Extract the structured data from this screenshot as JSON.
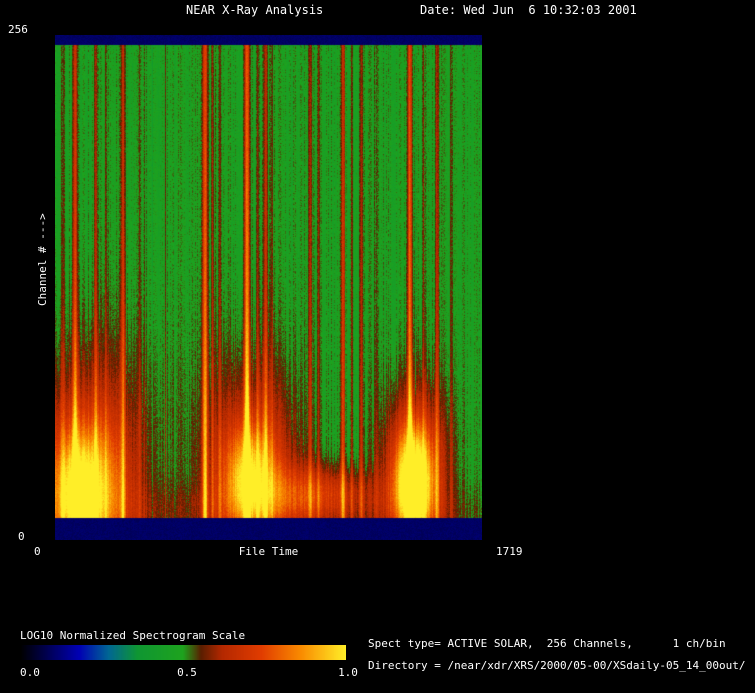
{
  "header": {
    "title": "NEAR X-Ray Analysis",
    "date_label": "Date: Wed Jun  6 10:32:03 2001"
  },
  "axes": {
    "y_top_tick": "256",
    "y_bottom_tick": "0",
    "y_title": "Channel # --->",
    "x_left_tick": "0",
    "x_title": "File Time",
    "x_right_tick": "1719"
  },
  "scale": {
    "label": "LOG10 Normalized Spectrogram Scale",
    "ticks": [
      "0.0",
      "0.5",
      "1.0"
    ]
  },
  "info": {
    "line1": "Spect type= ACTIVE SOLAR,  256 Channels,      1 ch/bin",
    "line2": "Directory = /near/xdr/XRS/2000/05-00/XSdaily-05_14_00out/"
  },
  "colors": {
    "background": "#000000",
    "text": "#ffffff"
  },
  "chart_data": {
    "type": "heatmap",
    "title": "NEAR X-Ray Analysis",
    "xlabel": "File Time",
    "ylabel": "Channel # --->",
    "x_range": [
      0,
      1719
    ],
    "y_range": [
      0,
      256
    ],
    "value_label": "LOG10 Normalized Spectrogram Scale",
    "value_range": [
      0.0,
      1.0
    ],
    "background_level": 0.48,
    "noise": {
      "column": 0.035,
      "pixel": 0.03
    },
    "colormap": [
      {
        "at": 0.0,
        "color": "#000000"
      },
      {
        "at": 0.09,
        "color": "#00005a"
      },
      {
        "at": 0.18,
        "color": "#0000b4"
      },
      {
        "at": 0.27,
        "color": "#006694"
      },
      {
        "at": 0.36,
        "color": "#0f9632"
      },
      {
        "at": 0.5,
        "color": "#1ea31e"
      },
      {
        "at": 0.555,
        "color": "#5a1e00"
      },
      {
        "at": 0.62,
        "color": "#b42800"
      },
      {
        "at": 0.74,
        "color": "#e13c00"
      },
      {
        "at": 0.86,
        "color": "#f98a00"
      },
      {
        "at": 1.0,
        "color": "#ffee28"
      }
    ],
    "edge_bands": [
      {
        "channels": [
          251,
          256
        ],
        "level": 0.1
      },
      {
        "channels": [
          0,
          11
        ],
        "level": 0.1
      }
    ],
    "streaks": [
      {
        "t": 32,
        "sigma": 4,
        "amp": 0.13
      },
      {
        "t": 81,
        "sigma": 7,
        "amp": 0.3
      },
      {
        "t": 165,
        "sigma": 5,
        "amp": 0.2
      },
      {
        "t": 205,
        "sigma": 4,
        "amp": 0.11
      },
      {
        "t": 274,
        "sigma": 6,
        "amp": 0.27
      },
      {
        "t": 342,
        "sigma": 4,
        "amp": 0.1
      },
      {
        "t": 604,
        "sigma": 7,
        "amp": 0.42
      },
      {
        "t": 636,
        "sigma": 4,
        "amp": 0.17
      },
      {
        "t": 664,
        "sigma": 5,
        "amp": 0.15
      },
      {
        "t": 773,
        "sigma": 7,
        "amp": 0.48
      },
      {
        "t": 817,
        "sigma": 4,
        "amp": 0.17
      },
      {
        "t": 849,
        "sigma": 6,
        "amp": 0.27
      },
      {
        "t": 874,
        "sigma": 4,
        "amp": 0.15
      },
      {
        "t": 1027,
        "sigma": 5,
        "amp": 0.18
      },
      {
        "t": 1060,
        "sigma": 4,
        "amp": 0.11
      },
      {
        "t": 1159,
        "sigma": 6,
        "amp": 0.28
      },
      {
        "t": 1196,
        "sigma": 4,
        "amp": 0.11
      },
      {
        "t": 1232,
        "sigma": 5,
        "amp": 0.19
      },
      {
        "t": 1292,
        "sigma": 4,
        "amp": 0.11
      },
      {
        "t": 1429,
        "sigma": 7,
        "amp": 0.4
      },
      {
        "t": 1486,
        "sigma": 4,
        "amp": 0.12
      },
      {
        "t": 1538,
        "sigma": 5,
        "amp": 0.23
      },
      {
        "t": 1598,
        "sigma": 4,
        "amp": 0.11
      }
    ],
    "blobs": [
      {
        "t": 150,
        "ch": 48,
        "st": 170,
        "sch": 42,
        "amp": 0.16
      },
      {
        "t": 120,
        "ch": 25,
        "st": 110,
        "sch": 24,
        "amp": 0.36
      },
      {
        "t": 95,
        "ch": 22,
        "st": 60,
        "sch": 18,
        "amp": 0.18
      },
      {
        "t": 790,
        "ch": 50,
        "st": 140,
        "sch": 35,
        "amp": 0.15
      },
      {
        "t": 790,
        "ch": 30,
        "st": 90,
        "sch": 20,
        "amp": 0.3
      },
      {
        "t": 775,
        "ch": 30,
        "st": 45,
        "sch": 16,
        "amp": 0.14
      },
      {
        "t": 1050,
        "ch": 24,
        "st": 150,
        "sch": 10,
        "amp": 0.2
      },
      {
        "t": 1450,
        "ch": 45,
        "st": 95,
        "sch": 28,
        "amp": 0.18
      },
      {
        "t": 1445,
        "ch": 28,
        "st": 62,
        "sch": 20,
        "amp": 0.42
      },
      {
        "t": 1445,
        "ch": 26,
        "st": 40,
        "sch": 16,
        "amp": 0.22
      },
      {
        "t": 860,
        "ch": 14,
        "st": 900,
        "sch": 10,
        "amp": 0.07
      }
    ]
  }
}
